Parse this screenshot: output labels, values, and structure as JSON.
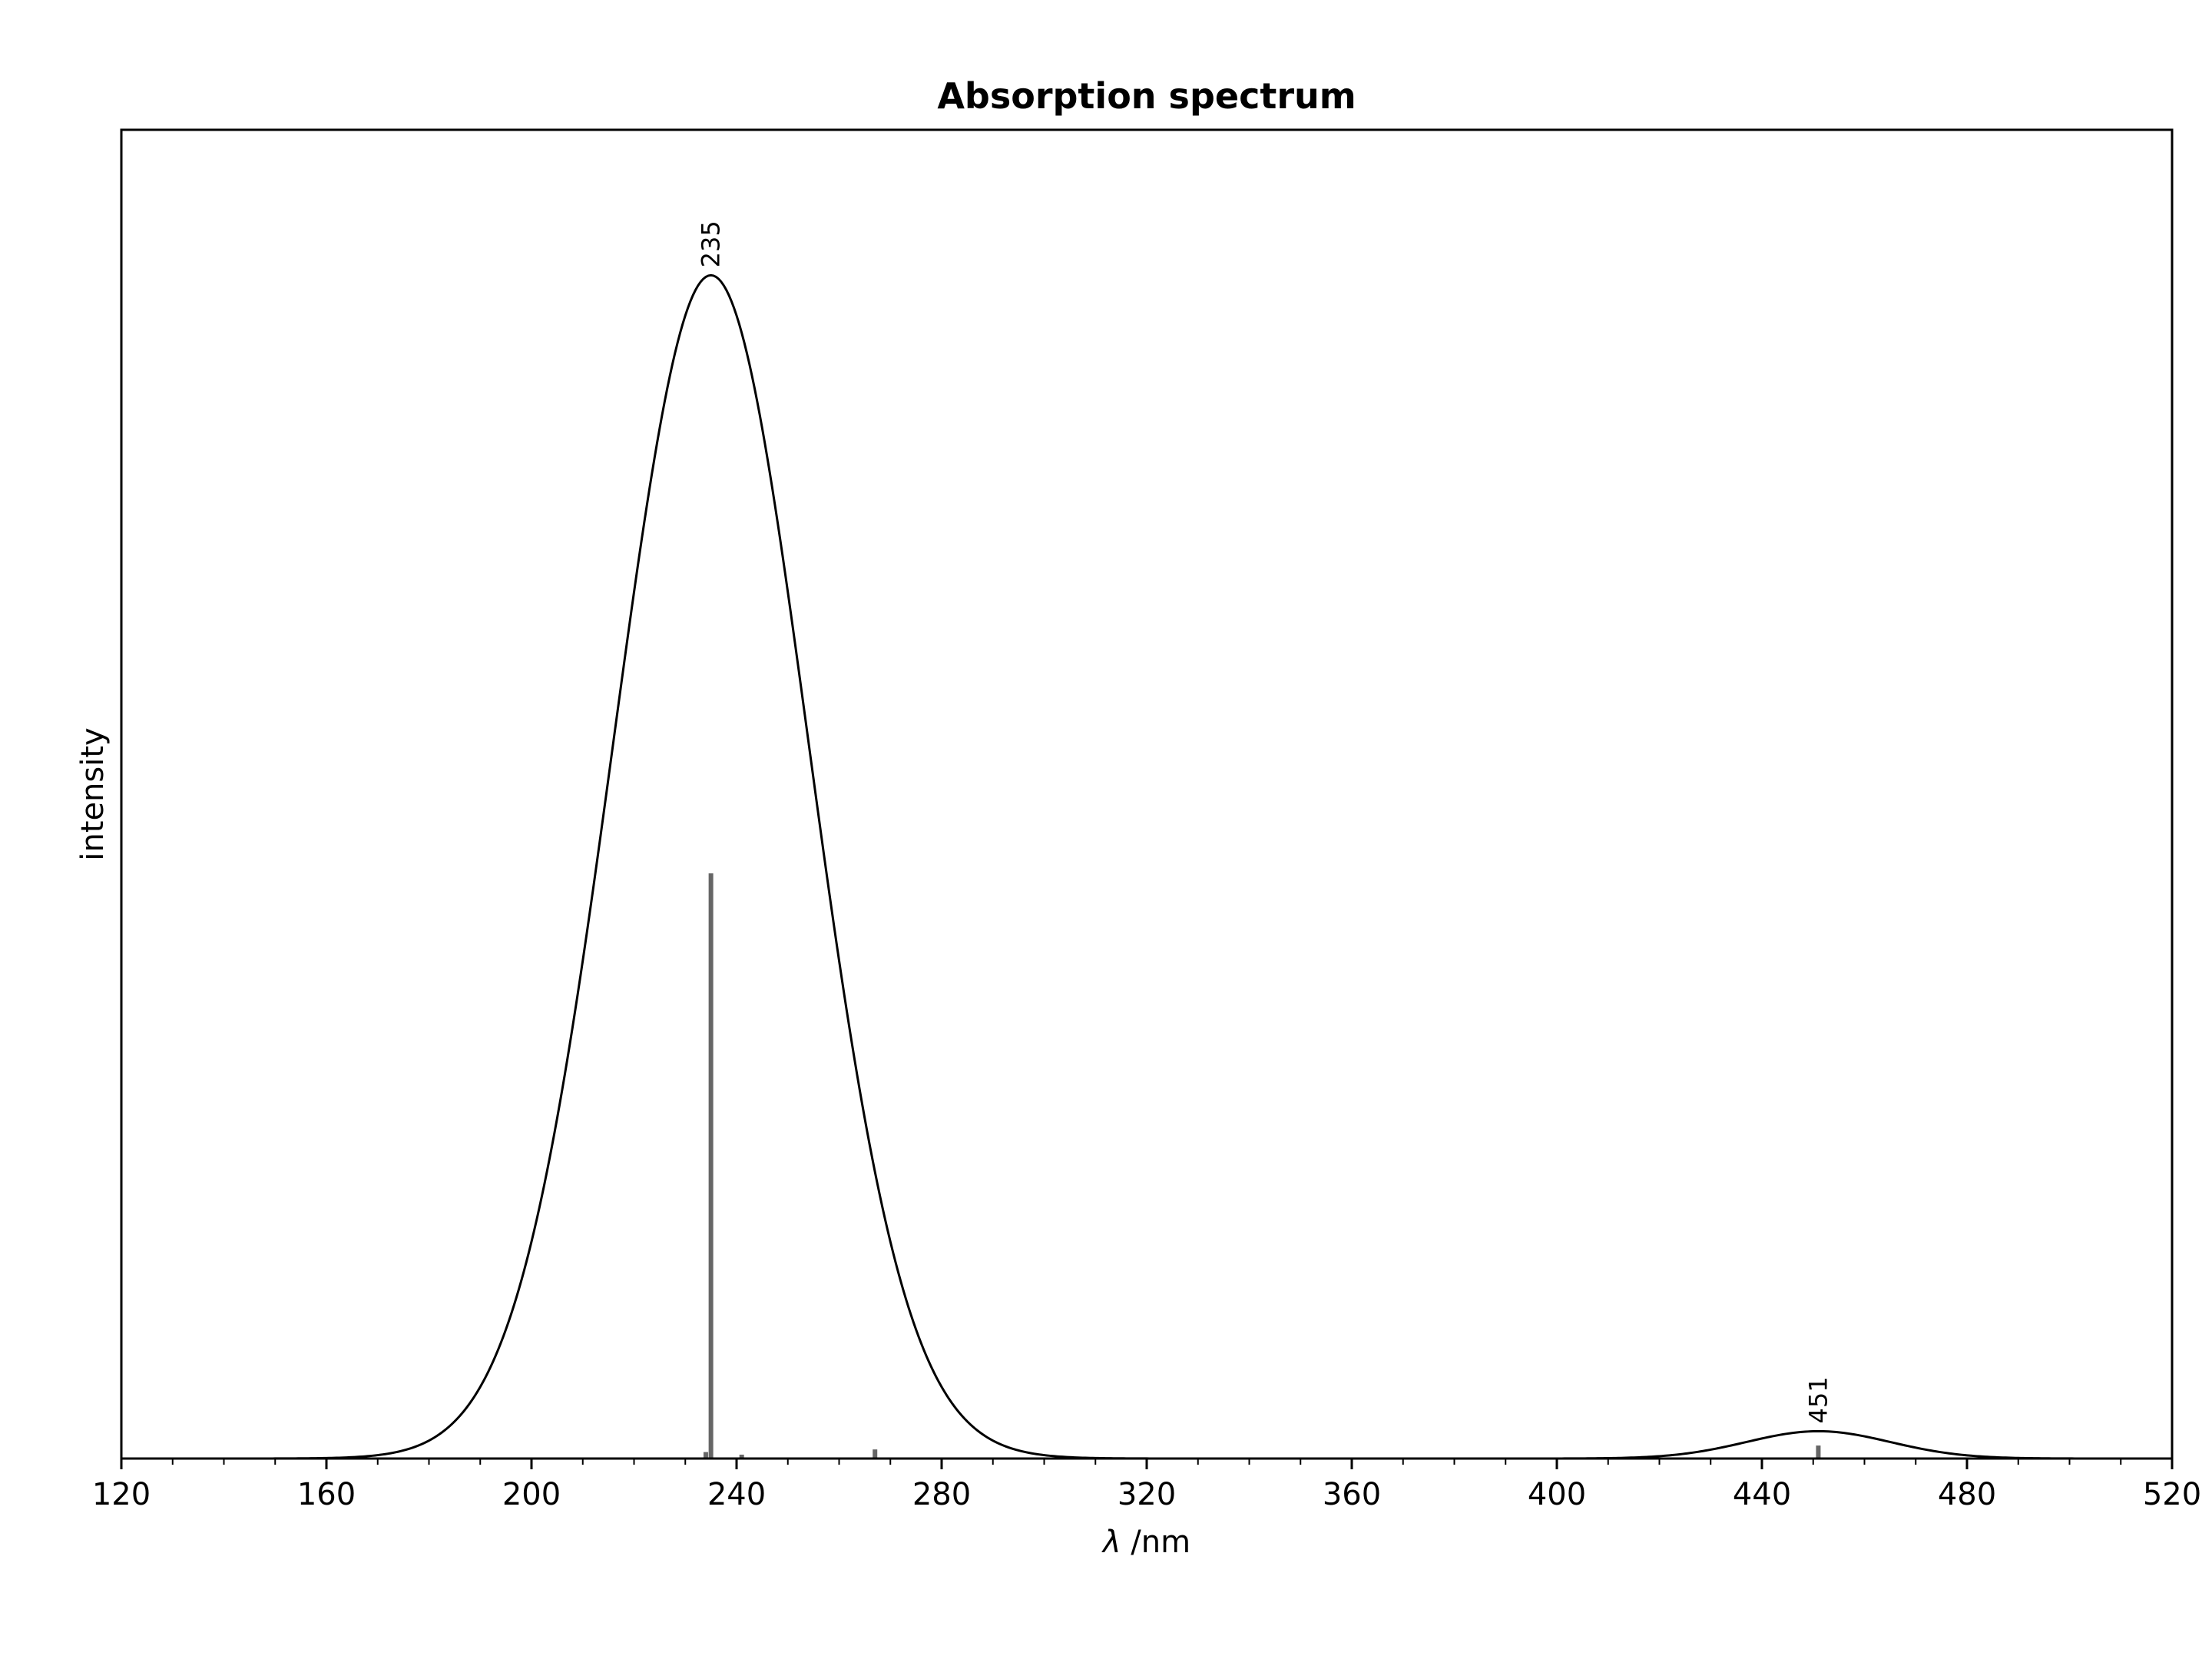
{
  "chart_data": {
    "type": "line",
    "title": "Absorption spectrum",
    "xlabel_symbol": "λ",
    "xlabel_unit": " /nm",
    "ylabel": "intensity",
    "xlim": [
      120,
      520
    ],
    "ylim": [
      0,
      1.0
    ],
    "x_ticks": [
      120,
      160,
      200,
      240,
      280,
      320,
      360,
      400,
      440,
      480,
      520
    ],
    "x_minor_step": 10,
    "grid": false,
    "legend": "none",
    "series": [
      {
        "kind": "spectrum-curve",
        "color": "#000000",
        "x_range": [
          120,
          511
        ],
        "bands": [
          {
            "center": 235,
            "height": 0.91,
            "sigma": 19
          },
          {
            "center": 451,
            "height": 0.021,
            "sigma": 14
          }
        ]
      },
      {
        "kind": "stick-transitions",
        "color": "#666666",
        "sticks": [
          {
            "x": 234,
            "y": 0.005
          },
          {
            "x": 235,
            "y": 0.45
          },
          {
            "x": 241,
            "y": 0.003
          },
          {
            "x": 267,
            "y": 0.007
          },
          {
            "x": 451,
            "y": 0.01
          }
        ]
      }
    ],
    "annotations": [
      {
        "text": "235",
        "x": 235
      },
      {
        "text": "451",
        "x": 451
      }
    ]
  }
}
